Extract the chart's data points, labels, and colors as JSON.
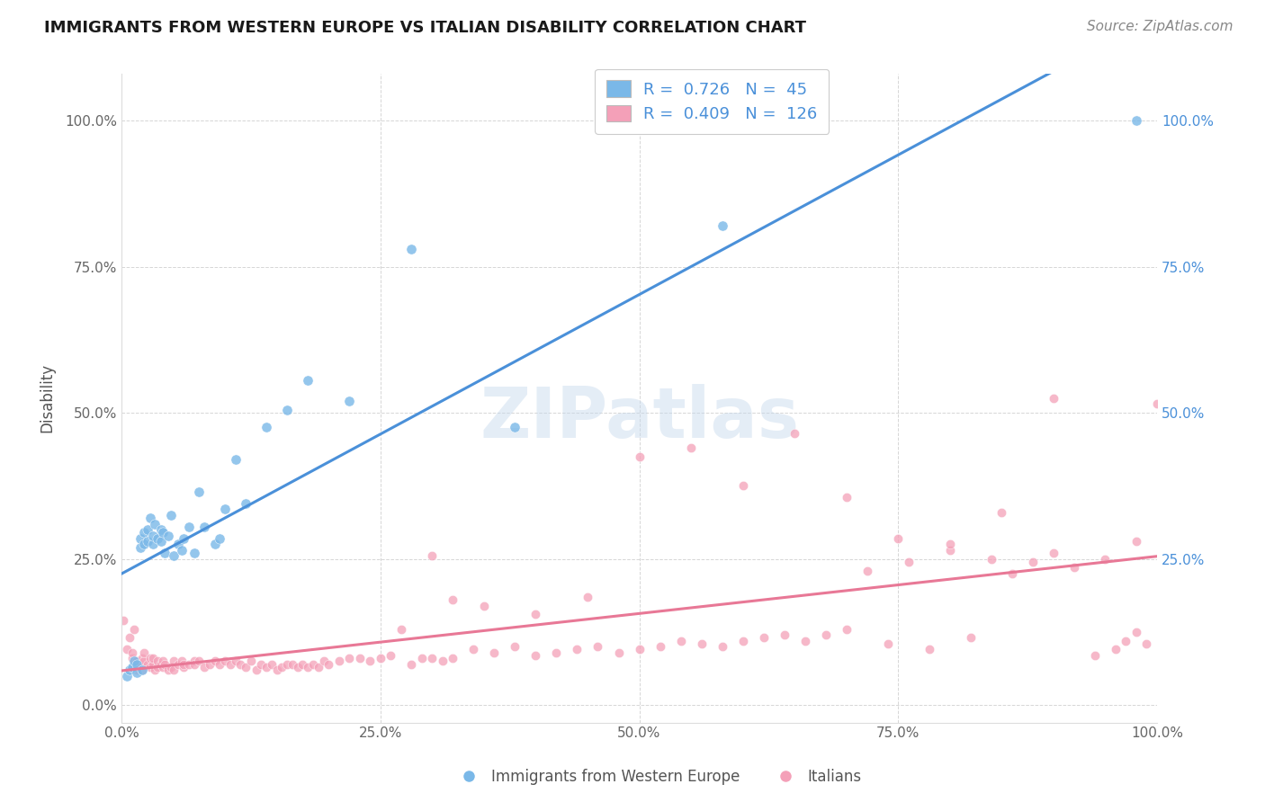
{
  "title": "IMMIGRANTS FROM WESTERN EUROPE VS ITALIAN DISABILITY CORRELATION CHART",
  "source": "Source: ZipAtlas.com",
  "ylabel": "Disability",
  "xlabel": "",
  "xlim": [
    0,
    1.0
  ],
  "ylim": [
    -0.03,
    1.08
  ],
  "blue_R": 0.726,
  "blue_N": 45,
  "pink_R": 0.409,
  "pink_N": 126,
  "blue_color": "#7ab8e8",
  "pink_color": "#f4a0b8",
  "blue_line_color": "#4a90d9",
  "pink_line_color": "#e87896",
  "watermark_text": "ZIPatlas",
  "legend_label_blue": "Immigrants from Western Europe",
  "legend_label_pink": "Italians",
  "blue_scatter_x": [
    0.005,
    0.008,
    0.01,
    0.012,
    0.015,
    0.015,
    0.018,
    0.018,
    0.02,
    0.022,
    0.022,
    0.025,
    0.025,
    0.028,
    0.03,
    0.03,
    0.032,
    0.035,
    0.038,
    0.038,
    0.04,
    0.042,
    0.045,
    0.048,
    0.05,
    0.055,
    0.058,
    0.06,
    0.065,
    0.07,
    0.075,
    0.08,
    0.09,
    0.095,
    0.1,
    0.11,
    0.12,
    0.14,
    0.16,
    0.18,
    0.22,
    0.28,
    0.38,
    0.58,
    0.98
  ],
  "blue_scatter_y": [
    0.05,
    0.06,
    0.065,
    0.075,
    0.055,
    0.07,
    0.27,
    0.285,
    0.06,
    0.275,
    0.295,
    0.28,
    0.3,
    0.32,
    0.275,
    0.29,
    0.31,
    0.285,
    0.28,
    0.3,
    0.295,
    0.26,
    0.29,
    0.325,
    0.255,
    0.275,
    0.265,
    0.285,
    0.305,
    0.26,
    0.365,
    0.305,
    0.275,
    0.285,
    0.335,
    0.42,
    0.345,
    0.475,
    0.505,
    0.555,
    0.52,
    0.78,
    0.475,
    0.82,
    1.0
  ],
  "pink_scatter_x": [
    0.002,
    0.005,
    0.008,
    0.01,
    0.01,
    0.012,
    0.015,
    0.015,
    0.018,
    0.02,
    0.02,
    0.022,
    0.022,
    0.025,
    0.028,
    0.028,
    0.03,
    0.03,
    0.032,
    0.035,
    0.035,
    0.038,
    0.04,
    0.04,
    0.042,
    0.045,
    0.048,
    0.05,
    0.05,
    0.055,
    0.058,
    0.06,
    0.06,
    0.065,
    0.07,
    0.07,
    0.075,
    0.08,
    0.085,
    0.09,
    0.095,
    0.1,
    0.105,
    0.11,
    0.115,
    0.12,
    0.125,
    0.13,
    0.135,
    0.14,
    0.145,
    0.15,
    0.155,
    0.16,
    0.165,
    0.17,
    0.175,
    0.18,
    0.185,
    0.19,
    0.195,
    0.2,
    0.21,
    0.22,
    0.23,
    0.24,
    0.25,
    0.26,
    0.27,
    0.28,
    0.29,
    0.3,
    0.31,
    0.32,
    0.34,
    0.36,
    0.38,
    0.4,
    0.42,
    0.44,
    0.46,
    0.48,
    0.5,
    0.52,
    0.54,
    0.56,
    0.58,
    0.6,
    0.62,
    0.64,
    0.66,
    0.68,
    0.7,
    0.72,
    0.74,
    0.76,
    0.78,
    0.8,
    0.82,
    0.84,
    0.86,
    0.88,
    0.9,
    0.92,
    0.94,
    0.96,
    0.97,
    0.98,
    0.99,
    0.3,
    0.32,
    0.35,
    0.4,
    0.45,
    0.5,
    0.55,
    0.6,
    0.65,
    0.7,
    0.75,
    0.8,
    0.85,
    0.9,
    0.95,
    0.98,
    1.0
  ],
  "pink_scatter_y": [
    0.145,
    0.095,
    0.115,
    0.08,
    0.09,
    0.13,
    0.06,
    0.075,
    0.07,
    0.08,
    0.06,
    0.075,
    0.09,
    0.07,
    0.08,
    0.065,
    0.07,
    0.08,
    0.06,
    0.065,
    0.075,
    0.07,
    0.075,
    0.065,
    0.07,
    0.06,
    0.065,
    0.06,
    0.075,
    0.07,
    0.075,
    0.065,
    0.07,
    0.07,
    0.075,
    0.07,
    0.075,
    0.065,
    0.07,
    0.075,
    0.07,
    0.075,
    0.07,
    0.075,
    0.07,
    0.065,
    0.075,
    0.06,
    0.07,
    0.065,
    0.07,
    0.06,
    0.065,
    0.07,
    0.07,
    0.065,
    0.07,
    0.065,
    0.07,
    0.065,
    0.075,
    0.07,
    0.075,
    0.08,
    0.08,
    0.075,
    0.08,
    0.085,
    0.13,
    0.07,
    0.08,
    0.08,
    0.075,
    0.08,
    0.095,
    0.09,
    0.1,
    0.085,
    0.09,
    0.095,
    0.1,
    0.09,
    0.095,
    0.1,
    0.11,
    0.105,
    0.1,
    0.11,
    0.115,
    0.12,
    0.11,
    0.12,
    0.13,
    0.23,
    0.105,
    0.245,
    0.095,
    0.265,
    0.115,
    0.25,
    0.225,
    0.245,
    0.26,
    0.235,
    0.085,
    0.095,
    0.11,
    0.125,
    0.105,
    0.255,
    0.18,
    0.17,
    0.155,
    0.185,
    0.425,
    0.44,
    0.375,
    0.465,
    0.355,
    0.285,
    0.275,
    0.33,
    0.525,
    0.25,
    0.28,
    0.515
  ],
  "ytick_labels": [
    "0.0%",
    "25.0%",
    "50.0%",
    "75.0%",
    "100.0%"
  ],
  "ytick_values": [
    0.0,
    0.25,
    0.5,
    0.75,
    1.0
  ],
  "xtick_labels": [
    "0.0%",
    "25.0%",
    "50.0%",
    "75.0%",
    "100.0%"
  ],
  "xtick_values": [
    0.0,
    0.25,
    0.5,
    0.75,
    1.0
  ],
  "right_ytick_labels": [
    "100.0%",
    "75.0%",
    "50.0%",
    "25.0%"
  ],
  "right_ytick_positions": [
    1.0,
    0.75,
    0.5,
    0.25
  ],
  "grid_color": "#cccccc",
  "background_color": "#ffffff"
}
